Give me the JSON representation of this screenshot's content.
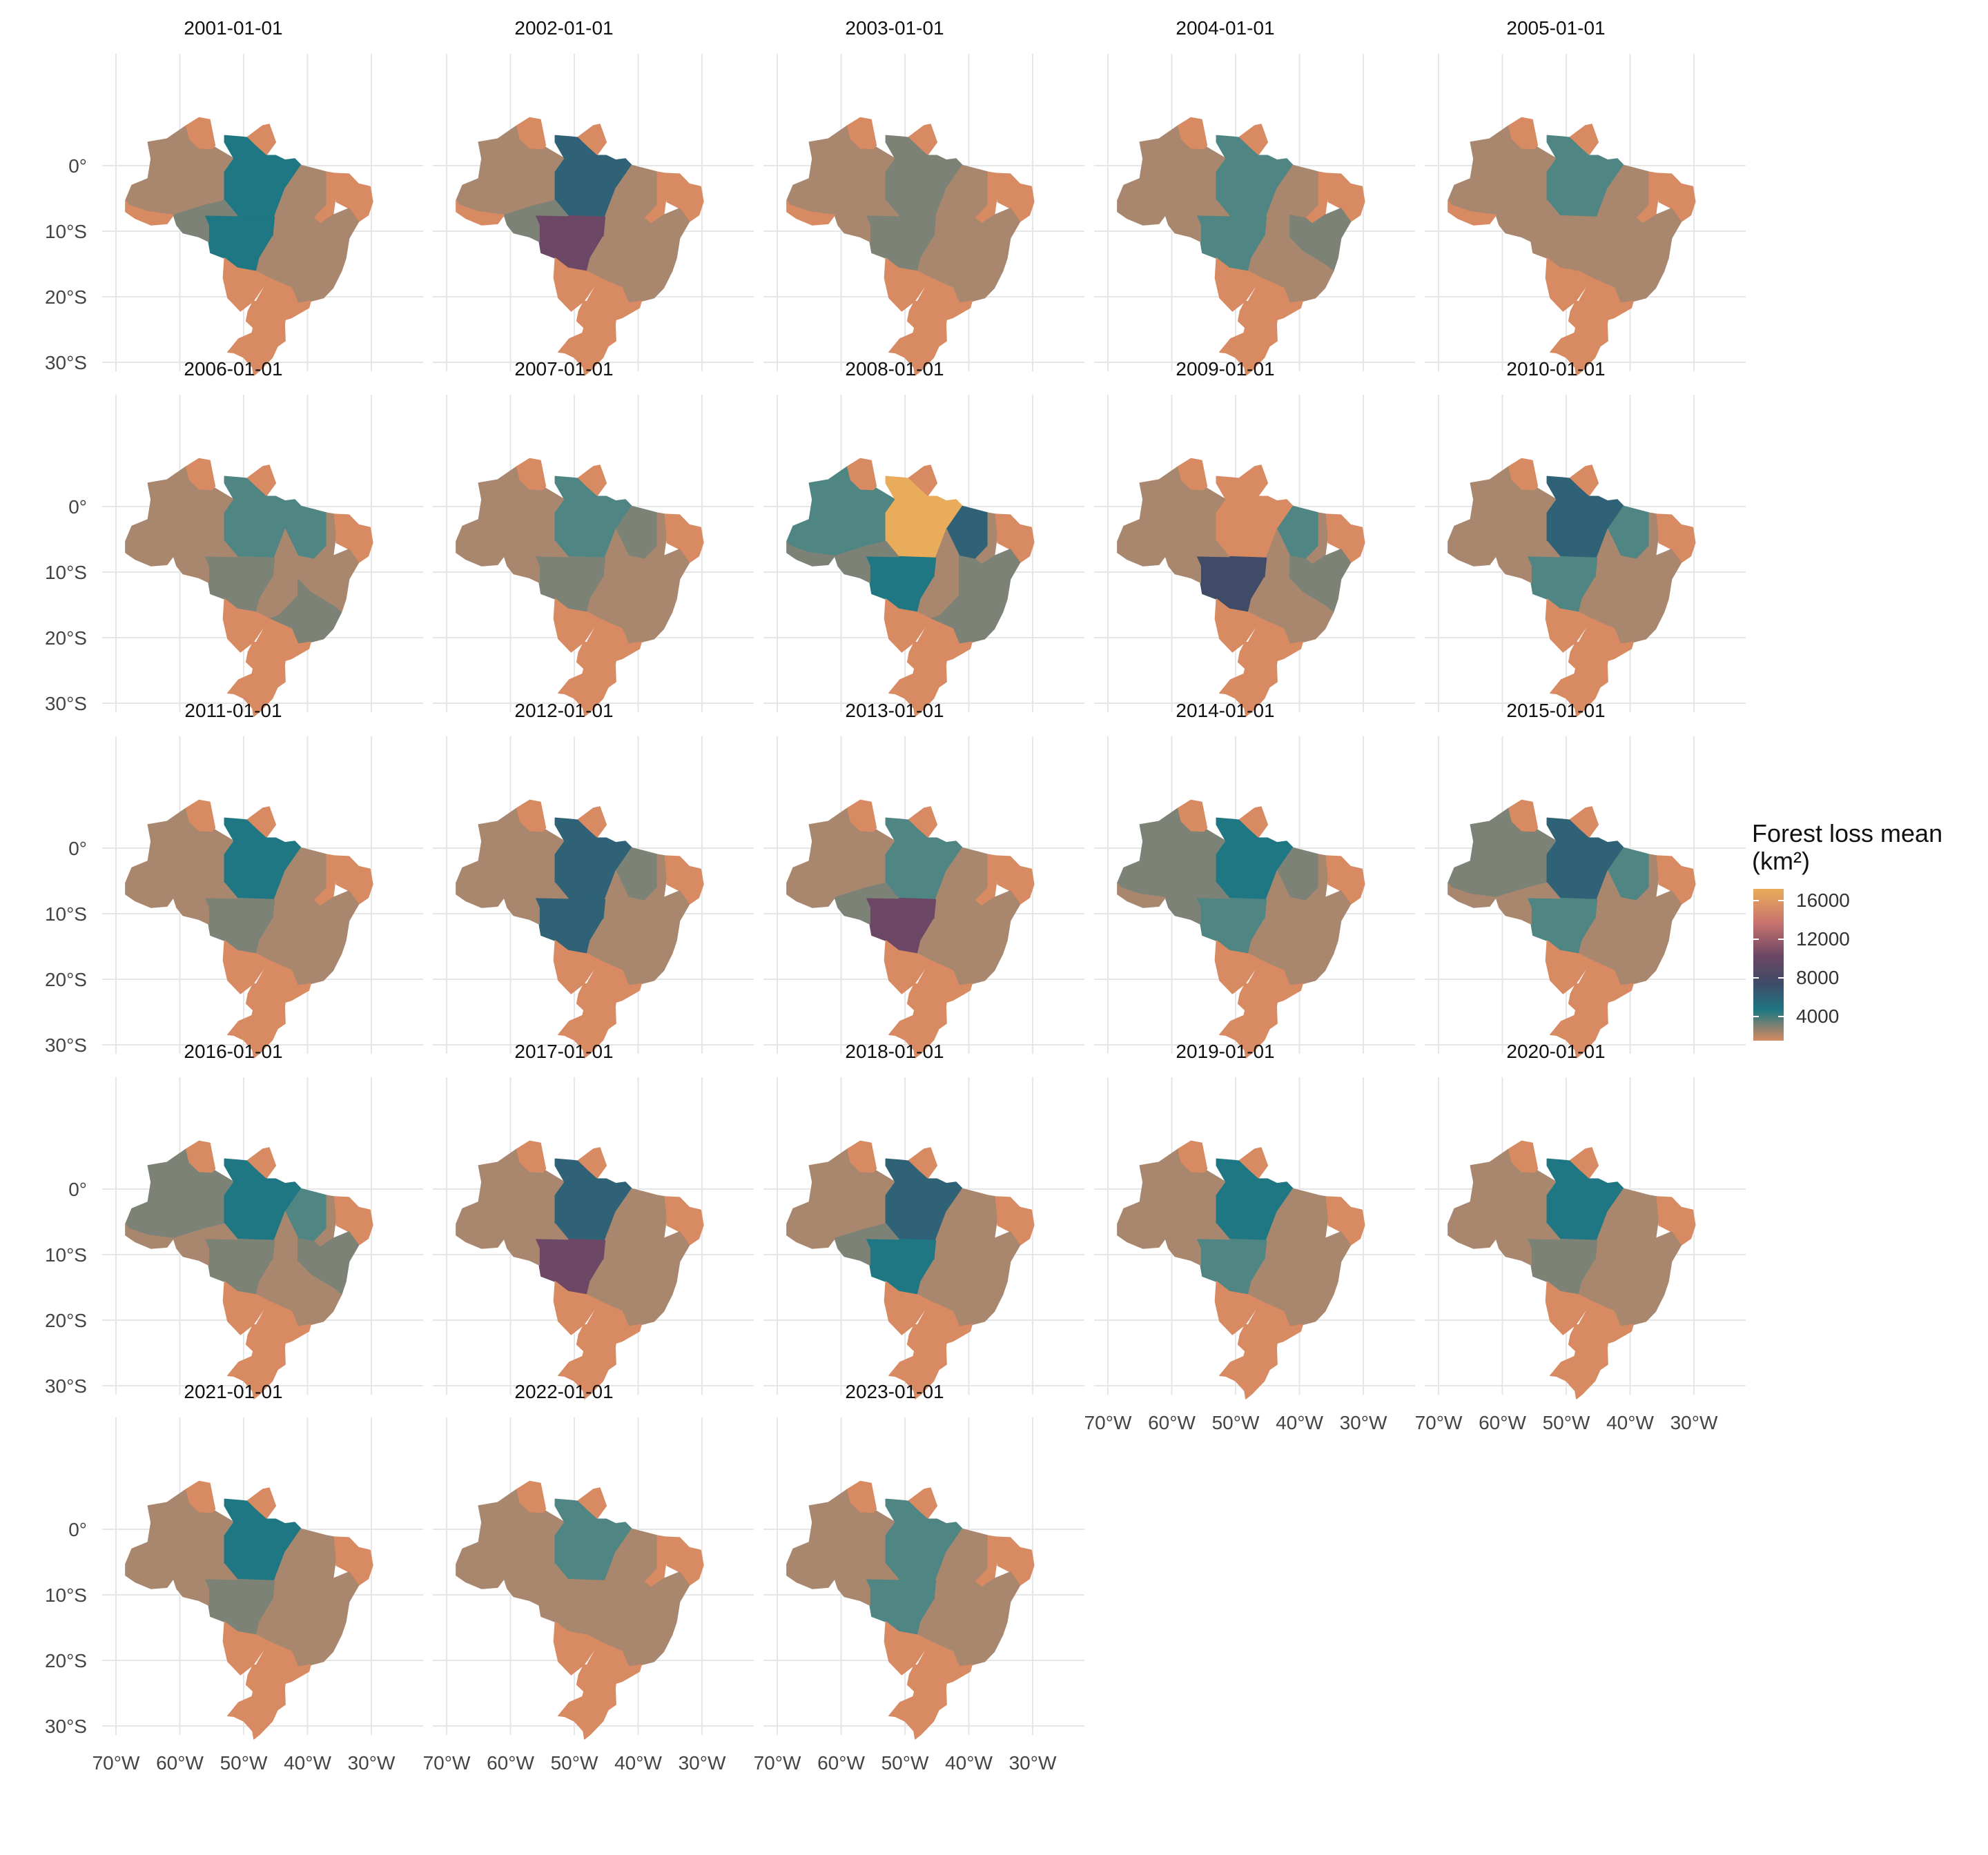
{
  "legend": {
    "title_line1": "Forest loss mean",
    "title_line2": "(km²)",
    "breaks": [
      "16000",
      "12000",
      "8000",
      "4000"
    ]
  },
  "axes": {
    "x_ticks": [
      "70°W",
      "60°W",
      "50°W",
      "40°W",
      "30°W"
    ],
    "y_ticks": [
      "0°",
      "10°S",
      "20°S",
      "30°S"
    ]
  },
  "color_scale": {
    "low": "#d88a62",
    "stops": [
      "#d88a62",
      "#a9876f",
      "#7d8277",
      "#4f8582",
      "#1e7782",
      "#2f6276",
      "#3f4b67",
      "#6d4766",
      "#c9746e",
      "#e9ac5b"
    ]
  },
  "panels": [
    {
      "title": "2001-01-01",
      "states": {
        "AM": 1.4,
        "PA": 6.5,
        "MT": 7.0,
        "RO": 3.5,
        "AC": 0.8,
        "MA": 2.0,
        "TO": 1.2,
        "BA": 1.0,
        "MG": 0.9,
        "GO": 1.0,
        "PI": 0.6
      }
    },
    {
      "title": "2002-01-01",
      "states": {
        "AM": 1.4,
        "PA": 8.0,
        "MT": 12.0,
        "RO": 4.0,
        "AC": 0.8,
        "MA": 2.2,
        "TO": 1.2,
        "BA": 1.2,
        "MG": 1.2,
        "GO": 1.2,
        "PI": 0.7
      }
    },
    {
      "title": "2003-01-01",
      "states": {
        "AM": 1.2,
        "PA": 3.8,
        "MT": 3.0,
        "RO": 2.0,
        "AC": 0.8,
        "MA": 1.8,
        "TO": 1.2,
        "BA": 1.2,
        "MG": 1.0,
        "GO": 1.2,
        "PI": 0.6
      }
    },
    {
      "title": "2004-01-01",
      "states": {
        "AM": 1.6,
        "PA": 5.5,
        "MT": 5.5,
        "RO": 2.5,
        "AC": 0.9,
        "MA": 2.5,
        "TO": 1.6,
        "BA": 3.2,
        "MG": 2.0,
        "GO": 1.2,
        "PI": 0.7
      }
    },
    {
      "title": "2005-01-01",
      "states": {
        "AM": 1.4,
        "PA": 4.5,
        "MT": 2.0,
        "RO": 2.0,
        "AC": 0.8,
        "MA": 1.4,
        "TO": 2.0,
        "BA": 1.8,
        "MG": 1.2,
        "GO": 1.2,
        "PI": 0.7
      }
    },
    {
      "title": "2006-01-01",
      "states": {
        "AM": 1.8,
        "PA": 5.5,
        "MT": 3.8,
        "RO": 2.5,
        "AC": 0.9,
        "MA": 4.5,
        "TO": 1.6,
        "BA": 2.5,
        "MG": 3.0,
        "GO": 1.8,
        "PI": 2.2
      }
    },
    {
      "title": "2007-01-01",
      "states": {
        "AM": 1.5,
        "PA": 5.0,
        "MT": 3.2,
        "RO": 2.5,
        "AC": 0.9,
        "MA": 4.0,
        "TO": 1.4,
        "BA": 2.2,
        "MG": 1.4,
        "GO": 1.2,
        "PI": 2.5
      }
    },
    {
      "title": "2008-01-01",
      "states": {
        "AM": 5.5,
        "PA": 16.0,
        "MT": 6.5,
        "RO": 4.0,
        "AC": 4.2,
        "MA": 9.0,
        "TO": 2.0,
        "BA": 3.6,
        "MG": 3.0,
        "GO": 1.6,
        "PI": 2.2
      }
    },
    {
      "title": "2009-01-01",
      "states": {
        "AM": 2.2,
        "PA": 0.5,
        "MT": 10.5,
        "RO": 1.6,
        "AC": 1.6,
        "MA": 5.0,
        "TO": 1.4,
        "BA": 3.0,
        "MG": 1.6,
        "GO": 1.2,
        "PI": 2.0
      }
    },
    {
      "title": "2010-01-01",
      "states": {
        "AM": 1.8,
        "PA": 9.5,
        "MT": 4.5,
        "RO": 2.0,
        "AC": 0.9,
        "MA": 4.5,
        "TO": 1.2,
        "BA": 2.0,
        "MG": 1.4,
        "GO": 1.2,
        "PI": 1.6
      }
    },
    {
      "title": "2011-01-01",
      "states": {
        "AM": 1.9,
        "PA": 7.5,
        "MT": 4.0,
        "RO": 2.5,
        "AC": 1.0,
        "MA": 2.5,
        "TO": 1.2,
        "BA": 1.6,
        "MG": 1.4,
        "GO": 1.2,
        "PI": 0.8
      }
    },
    {
      "title": "2012-01-01",
      "states": {
        "AM": 2.0,
        "PA": 9.0,
        "MT": 9.5,
        "RO": 2.5,
        "AC": 1.0,
        "MA": 3.0,
        "TO": 1.6,
        "BA": 2.0,
        "MG": 1.6,
        "GO": 1.4,
        "PI": 1.2
      }
    },
    {
      "title": "2013-01-01",
      "states": {
        "AM": 1.2,
        "PA": 5.5,
        "MT": 12.5,
        "RO": 3.0,
        "AC": 1.0,
        "MA": 1.2,
        "TO": 1.2,
        "BA": 1.2,
        "MG": 1.2,
        "GO": 1.2,
        "PI": 0.7
      }
    },
    {
      "title": "2014-01-01",
      "states": {
        "AM": 2.8,
        "PA": 7.5,
        "MT": 6.0,
        "RO": 2.8,
        "AC": 1.0,
        "MA": 3.0,
        "TO": 1.6,
        "BA": 1.8,
        "MG": 1.6,
        "GO": 1.4,
        "PI": 1.2
      }
    },
    {
      "title": "2015-01-01",
      "states": {
        "AM": 3.2,
        "PA": 9.5,
        "MT": 6.0,
        "RO": 2.5,
        "AC": 1.0,
        "MA": 4.5,
        "TO": 1.6,
        "BA": 2.2,
        "MG": 1.4,
        "GO": 1.4,
        "PI": 2.2
      }
    },
    {
      "title": "2016-01-01",
      "states": {
        "AM": 2.8,
        "PA": 7.5,
        "MT": 3.8,
        "RO": 2.5,
        "AC": 1.5,
        "MA": 5.0,
        "TO": 1.6,
        "BA": 2.8,
        "MG": 2.2,
        "GO": 2.0,
        "PI": 2.2
      }
    },
    {
      "title": "2017-01-01",
      "states": {
        "AM": 1.4,
        "PA": 9.5,
        "MT": 12.5,
        "RO": 2.0,
        "AC": 0.9,
        "MA": 2.0,
        "TO": 1.6,
        "BA": 1.6,
        "MG": 1.2,
        "GO": 1.2,
        "PI": 1.0
      }
    },
    {
      "title": "2018-01-01",
      "states": {
        "AM": 1.8,
        "PA": 9.5,
        "MT": 7.5,
        "RO": 4.0,
        "AC": 0.9,
        "MA": 2.5,
        "TO": 1.6,
        "BA": 2.0,
        "MG": 1.2,
        "GO": 1.2,
        "PI": 1.0
      }
    },
    {
      "title": "2019-01-01",
      "states": {
        "AM": 1.4,
        "PA": 7.5,
        "MT": 4.8,
        "RO": 2.5,
        "AC": 0.9,
        "MA": 2.0,
        "TO": 1.4,
        "BA": 1.8,
        "MG": 1.4,
        "GO": 1.2,
        "PI": 1.0
      }
    },
    {
      "title": "2020-01-01",
      "states": {
        "AM": 1.4,
        "PA": 6.8,
        "MT": 4.2,
        "RO": 2.2,
        "AC": 0.9,
        "MA": 2.0,
        "TO": 1.4,
        "BA": 1.8,
        "MG": 1.4,
        "GO": 1.2,
        "PI": 1.0
      }
    },
    {
      "title": "2021-01-01",
      "states": {
        "AM": 1.4,
        "PA": 6.5,
        "MT": 3.6,
        "RO": 2.2,
        "AC": 0.9,
        "MA": 2.0,
        "TO": 1.4,
        "BA": 2.0,
        "MG": 1.4,
        "GO": 1.2,
        "PI": 1.0
      }
    },
    {
      "title": "2022-01-01",
      "states": {
        "AM": 1.4,
        "PA": 4.5,
        "MT": 2.0,
        "RO": 1.8,
        "AC": 0.9,
        "MA": 1.4,
        "TO": 1.2,
        "BA": 1.8,
        "MG": 1.2,
        "GO": 1.2,
        "PI": 0.8
      }
    },
    {
      "title": "2023-01-01",
      "states": {
        "AM": 1.4,
        "PA": 5.5,
        "MT": 5.5,
        "RO": 1.8,
        "AC": 0.9,
        "MA": 1.8,
        "TO": 1.2,
        "BA": 1.8,
        "MG": 1.2,
        "GO": 1.2,
        "PI": 0.8
      }
    }
  ]
}
